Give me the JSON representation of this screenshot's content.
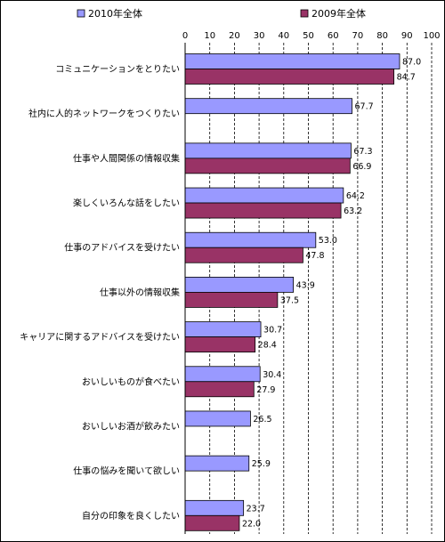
{
  "chart_data": {
    "type": "bar",
    "orientation": "horizontal",
    "title": "",
    "xlabel": "",
    "ylabel": "",
    "xlim": [
      0,
      100
    ],
    "ticks": [
      0,
      10,
      20,
      30,
      40,
      50,
      60,
      70,
      80,
      90,
      100
    ],
    "grid": "vertical-dashed",
    "legend_position": "top",
    "categories": [
      "コミュニケーションをとりたい",
      "社内に人的ネットワークをつくりたい",
      "仕事や人間関係の情報収集",
      "楽しくいろんな話をしたい",
      "仕事のアドバイスを受けたい",
      "仕事以外の情報収集",
      "キャリアに関するアドバイスを受けたい",
      "おいしいものが食べたい",
      "おいしいお酒が飲みたい",
      "仕事の悩みを聞いて欲しい",
      "自分の印象を良くしたい"
    ],
    "series": [
      {
        "name": "2010年全体",
        "color": "#9999ff",
        "values": [
          87.0,
          67.7,
          67.3,
          64.2,
          53.0,
          43.9,
          30.7,
          30.4,
          26.5,
          25.9,
          23.7
        ],
        "labels": [
          "87.0",
          "67.7",
          "67.3",
          "64.2",
          "53.0",
          "43.9",
          "30.7",
          "30.4",
          "26.5",
          "25.9",
          "23.7"
        ]
      },
      {
        "name": "2009年全体",
        "color": "#993366",
        "values": [
          84.7,
          null,
          66.9,
          63.2,
          47.8,
          37.5,
          28.4,
          27.9,
          null,
          null,
          22.0
        ],
        "labels": [
          "84.7",
          null,
          "66.9",
          "63.2",
          "47.8",
          "37.5",
          "28.4",
          "27.9",
          null,
          null,
          "22.0"
        ]
      }
    ]
  }
}
